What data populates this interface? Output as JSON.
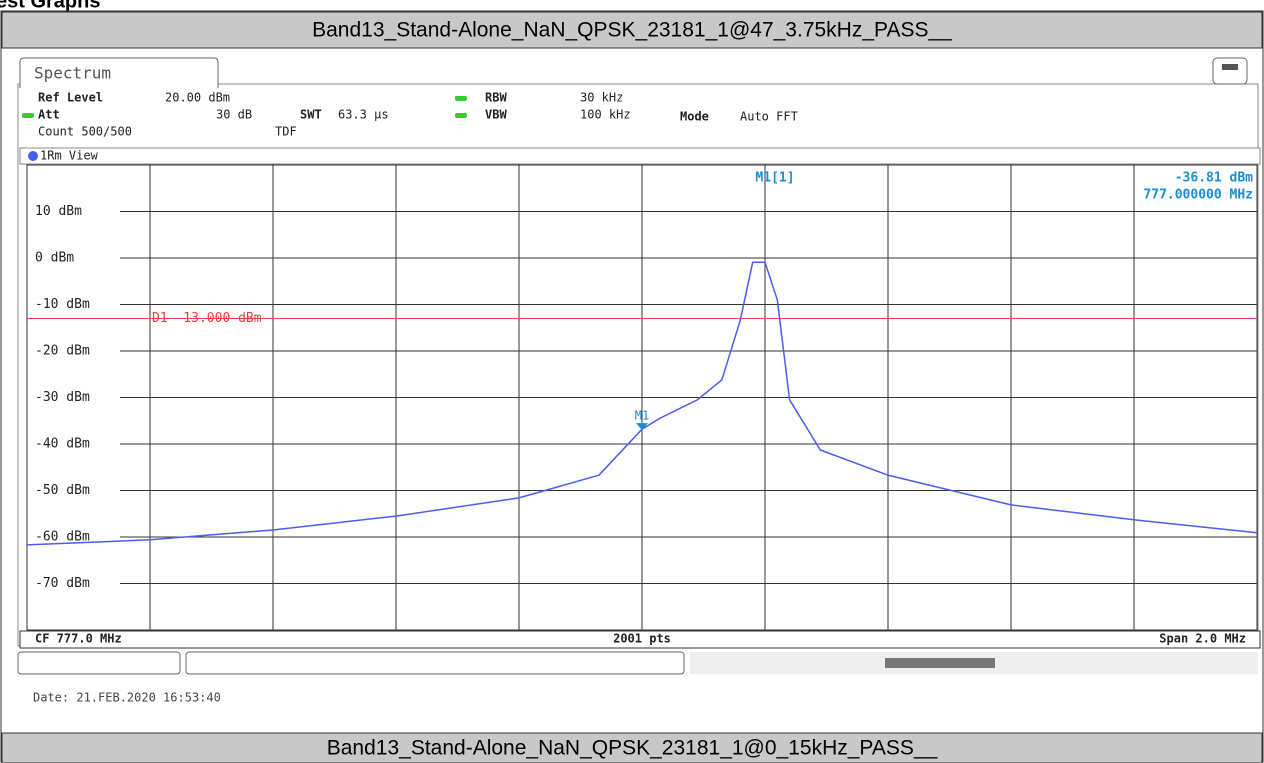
{
  "page_heading": "est Graphs",
  "result_title": "Band13_Stand-Alone_NaN_QPSK_23181_1@47_3.75kHz_PASS__",
  "next_title": "Band13_Stand-Alone_NaN_QPSK_23181_1@0_15kHz_PASS__",
  "instrument": {
    "tab": "Spectrum",
    "ref_level": {
      "name": "Ref Level",
      "value": "20.00 dBm"
    },
    "att": {
      "name": "Att",
      "value": "30 dB"
    },
    "swt": {
      "name": "SWT",
      "value": "63.3 µs"
    },
    "rbw": {
      "name": "RBW",
      "value": "30 kHz"
    },
    "vbw": {
      "name": "VBW",
      "value": "100 kHz"
    },
    "mode": {
      "name": "Mode",
      "value": "Auto FFT"
    },
    "count": "Count 500/500",
    "tdf": "TDF",
    "date": "Date: 21.FEB.2020  16:53:40"
  },
  "chart_data": {
    "type": "line",
    "xlim": [
      776.0,
      778.0
    ],
    "ylim": [
      -80,
      20
    ],
    "xgrid": [
      776.2,
      776.4,
      776.6,
      776.8,
      777.0,
      777.2,
      777.4,
      777.6,
      777.8
    ],
    "yticks": [
      {
        "value": 10,
        "label": "10 dBm"
      },
      {
        "value": 0,
        "label": "0 dBm"
      },
      {
        "value": -10,
        "label": "-10 dBm"
      },
      {
        "value": -20,
        "label": "-20 dBm"
      },
      {
        "value": -30,
        "label": "-30 dBm"
      },
      {
        "value": -40,
        "label": "-40 dBm"
      },
      {
        "value": -50,
        "label": "-50 dBm"
      },
      {
        "value": -60,
        "label": "-60 dBm"
      },
      {
        "value": -70,
        "label": "-70 dBm"
      }
    ],
    "x": [
      776.0,
      776.2,
      776.4,
      776.6,
      776.8,
      776.93,
      777.0,
      777.03,
      777.09,
      777.13,
      777.16,
      777.18,
      777.2,
      777.22,
      777.24,
      777.29,
      777.4,
      777.6,
      777.8,
      778.0
    ],
    "series": [
      {
        "name": "1Rm View",
        "color": "#4b5cf0",
        "values": [
          -61.7,
          -60.6,
          -58.5,
          -55.5,
          -51.6,
          -46.7,
          -36.81,
          -34.4,
          -30.5,
          -26.2,
          -13.3,
          -0.9,
          -0.9,
          -9,
          -30.5,
          -41.3,
          -46.7,
          -53.1,
          -56.3,
          -59.1
        ]
      }
    ],
    "marker": {
      "label": "M1",
      "readout": "M1[1]",
      "x": 777.0,
      "y": -36.81,
      "y_label": "-36.81 dBm",
      "x_label": "777.000000 MHz",
      "color": "#1a8fd0"
    },
    "display_line": {
      "label": "D1  -13.000 dBm",
      "value": -13,
      "color": "#e84040"
    },
    "center_label": "CF 777.0 MHz",
    "points_label": "2001 pts",
    "span_label": "Span 2.0 MHz"
  }
}
